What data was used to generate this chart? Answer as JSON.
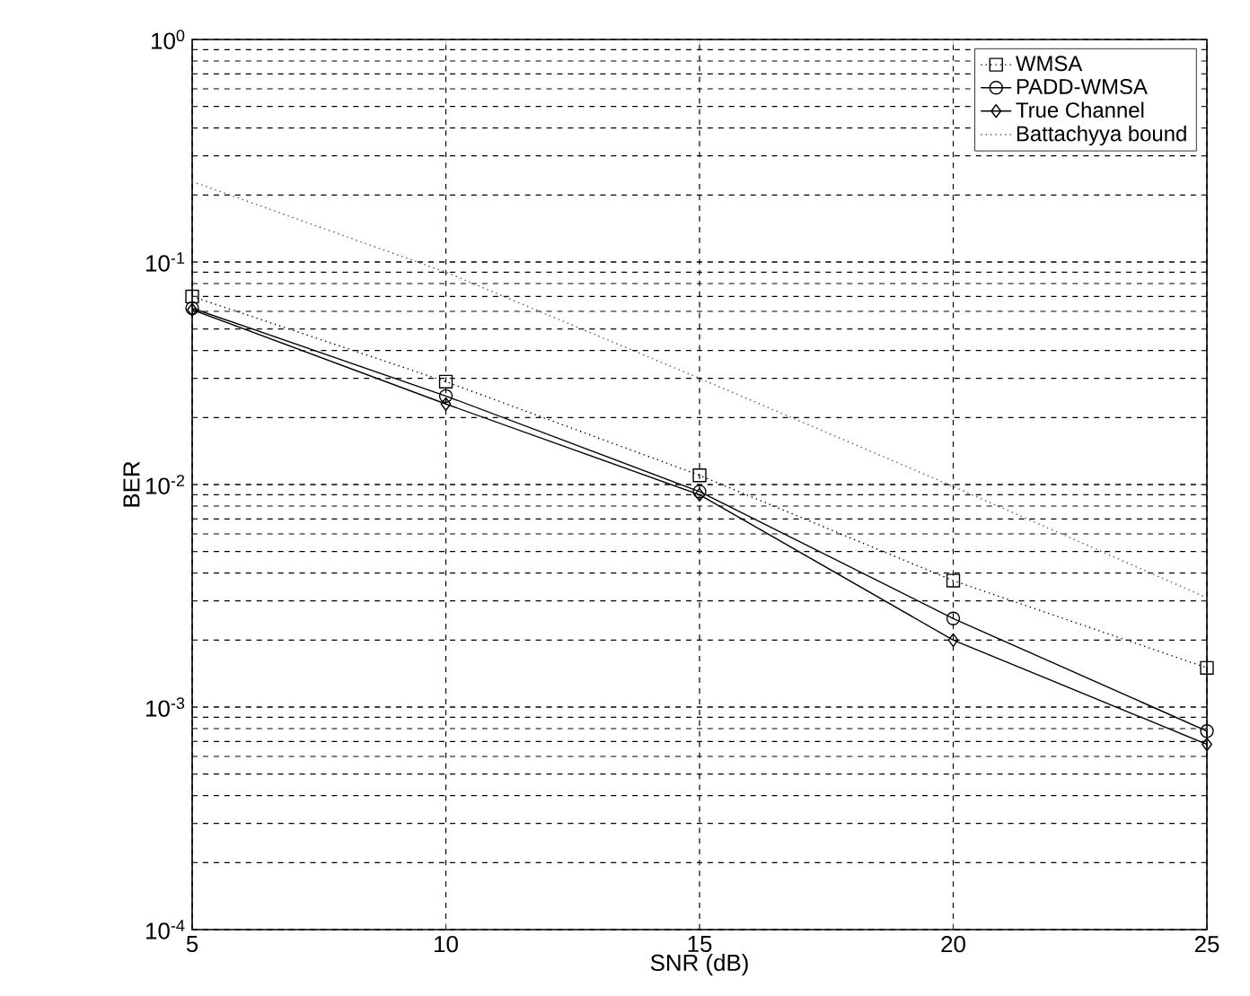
{
  "chart_data": {
    "type": "line",
    "xlabel": "SNR (dB)",
    "ylabel": "BER",
    "x": [
      5,
      10,
      15,
      20,
      25
    ],
    "series": [
      {
        "name": "WMSA",
        "color": "#000000",
        "values": [
          0.07,
          0.029,
          0.011,
          0.0037,
          0.0015
        ],
        "marker": "square",
        "line_style": "dotted"
      },
      {
        "name": "PADD-WMSA",
        "color": "#000000",
        "values": [
          0.062,
          0.025,
          0.0093,
          0.0025,
          0.00078
        ],
        "marker": "circle",
        "line_style": "solid"
      },
      {
        "name": "True Channel",
        "color": "#000000",
        "values": [
          0.061,
          0.023,
          0.009,
          0.002,
          0.00068
        ],
        "marker": "diamond",
        "line_style": "solid"
      },
      {
        "name": "Battachyya bound",
        "color": "#555555",
        "values": [
          0.23,
          0.09,
          0.03,
          0.0098,
          0.0031
        ],
        "marker": "none",
        "line_style": "dotted"
      }
    ],
    "xlim": [
      5,
      25
    ],
    "xticks": [
      5,
      10,
      15,
      20,
      25
    ],
    "ylim": [
      0.0001,
      1
    ],
    "yticks": [
      {
        "value": 0.0001,
        "label": "10$^{-4}$"
      },
      {
        "value": 0.001,
        "label": "10$^{-3}$"
      },
      {
        "value": 0.01,
        "label": "10$^{-2}$"
      },
      {
        "value": 0.1,
        "label": "10$^{-1}$"
      },
      {
        "value": 1,
        "label": "10$^{0}$"
      }
    ],
    "log": "y",
    "grid": true,
    "legend": "top right"
  }
}
